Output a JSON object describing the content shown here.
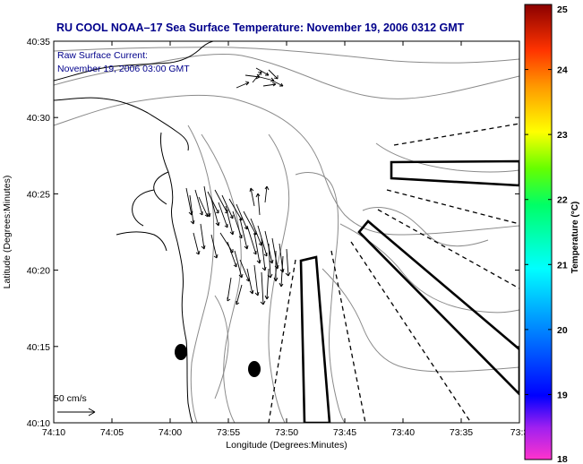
{
  "title": "RU COOL  NOAA–17  Sea Surface Temperature:  November 19, 2006 0312 GMT",
  "legend": {
    "line1": "Raw Surface Current:",
    "line2": "November 19, 2006 03:00 GMT",
    "scale_label": "50 cm/s"
  },
  "axes": {
    "xlabel": "Longitude (Degrees:Minutes)",
    "ylabel": "Latitude (Degrees:Minutes)",
    "x_ticks": [
      "74:10",
      "74:05",
      "74:00",
      "73:55",
      "73:50",
      "73:45",
      "73:40",
      "73:35",
      "73:3"
    ],
    "y_ticks": [
      "40:35",
      "40:30",
      "40:25",
      "40:20",
      "40:15",
      "40:10"
    ]
  },
  "colorbar": {
    "label": "Temperature (°C)",
    "ticks": [
      "25",
      "24",
      "23",
      "22",
      "21",
      "20",
      "19",
      "18"
    ],
    "range": [
      18,
      25
    ]
  },
  "colors": {
    "title": "#00008b",
    "coast": "#000000",
    "contour": "#8a8a8a",
    "vectors": "#000000"
  }
}
